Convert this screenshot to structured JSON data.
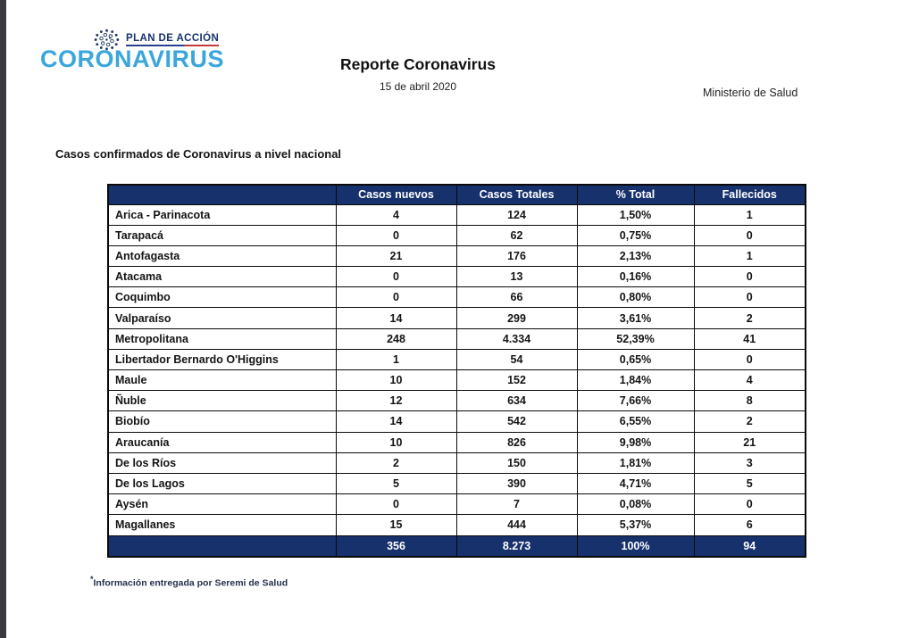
{
  "colors": {
    "navy": "#17316D",
    "brand_blue": "#3AA6DC",
    "underline_blue": "#27408F",
    "underline_red": "#C43B3B"
  },
  "logo": {
    "plan_label": "PLAN DE ACCIÓN",
    "brand": "CORONAVIRUS",
    "virus_icon": "virus-dotted-particle"
  },
  "header": {
    "title": "Reporte Coronavirus",
    "date": "15 de abril 2020",
    "ministry": "Ministerio de Salud"
  },
  "section_title": "Casos confirmados de Coronavirus a nivel nacional",
  "table": {
    "columns": [
      "",
      "Casos nuevos",
      "Casos Totales",
      "% Total",
      "Fallecidos"
    ],
    "rows": [
      {
        "region": "Arica - Parinacota",
        "nuevos": "4",
        "totales": "124",
        "pct": "1,50%",
        "fallecidos": "1"
      },
      {
        "region": "Tarapacá",
        "nuevos": "0",
        "totales": "62",
        "pct": "0,75%",
        "fallecidos": "0"
      },
      {
        "region": "Antofagasta",
        "nuevos": "21",
        "totales": "176",
        "pct": "2,13%",
        "fallecidos": "1"
      },
      {
        "region": "Atacama",
        "nuevos": "0",
        "totales": "13",
        "pct": "0,16%",
        "fallecidos": "0"
      },
      {
        "region": "Coquimbo",
        "nuevos": "0",
        "totales": "66",
        "pct": "0,80%",
        "fallecidos": "0"
      },
      {
        "region": "Valparaíso",
        "nuevos": "14",
        "totales": "299",
        "pct": "3,61%",
        "fallecidos": "2"
      },
      {
        "region": "Metropolitana",
        "nuevos": "248",
        "totales": "4.334",
        "pct": "52,39%",
        "fallecidos": "41"
      },
      {
        "region": "Libertador Bernardo O'Higgins",
        "nuevos": "1",
        "totales": "54",
        "pct": "0,65%",
        "fallecidos": "0"
      },
      {
        "region": "Maule",
        "nuevos": "10",
        "totales": "152",
        "pct": "1,84%",
        "fallecidos": "4"
      },
      {
        "region": "Ñuble",
        "nuevos": "12",
        "totales": "634",
        "pct": "7,66%",
        "fallecidos": "8"
      },
      {
        "region": "Biobío",
        "nuevos": "14",
        "totales": "542",
        "pct": "6,55%",
        "fallecidos": "2"
      },
      {
        "region": "Araucanía",
        "nuevos": "10",
        "totales": "826",
        "pct": "9,98%",
        "fallecidos": "21"
      },
      {
        "region": "De los Ríos",
        "nuevos": "2",
        "totales": "150",
        "pct": "1,81%",
        "fallecidos": "3"
      },
      {
        "region": "De los Lagos",
        "nuevos": "5",
        "totales": "390",
        "pct": "4,71%",
        "fallecidos": "5"
      },
      {
        "region": "Aysén",
        "nuevos": "0",
        "totales": "7",
        "pct": "0,08%",
        "fallecidos": "0"
      },
      {
        "region": "Magallanes",
        "nuevos": "15",
        "totales": "444",
        "pct": "5,37%",
        "fallecidos": "6"
      }
    ],
    "total": {
      "region": "",
      "nuevos": "356",
      "totales": "8.273",
      "pct": "100%",
      "fallecidos": "94"
    }
  },
  "footnote": {
    "marker": "*",
    "text": "Información entregada por Seremi de Salud"
  }
}
